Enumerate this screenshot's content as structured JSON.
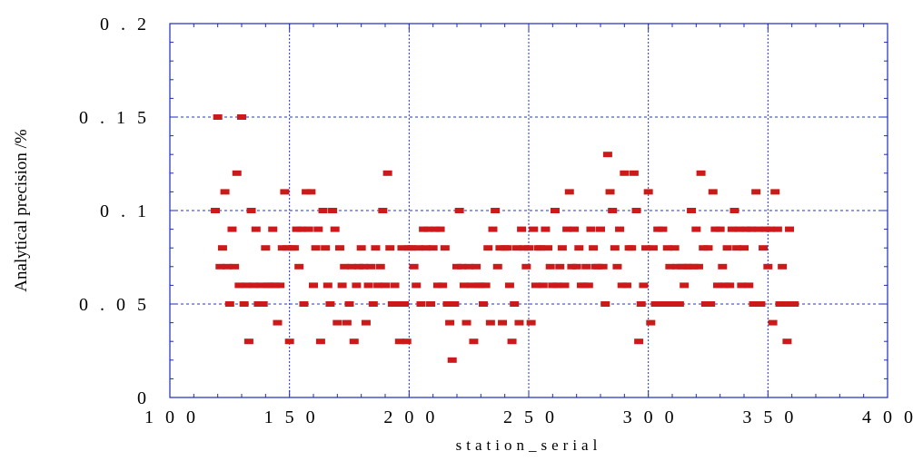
{
  "chart_data": {
    "type": "scatter",
    "title": "",
    "xlabel": "station_serial",
    "ylabel": "Analytical precision /%",
    "xlim": [
      100,
      400
    ],
    "ylim": [
      0,
      0.2
    ],
    "x_ticks": [
      "1 0 0",
      "1 5 0",
      "2 0 0",
      "2 5 0",
      "3 0 0",
      "3 5 0",
      "4 0 0"
    ],
    "y_ticks": [
      "0",
      "0 . 0 5",
      "0 . 1",
      "0 . 1 5",
      "0 . 2"
    ],
    "grid": true,
    "marker_color": "#cc1a1a",
    "grid_color": "#2233cc",
    "series": [
      {
        "points": [
          [
            119,
            0.1
          ],
          [
            120,
            0.15
          ],
          [
            121,
            0.07
          ],
          [
            122,
            0.08
          ],
          [
            123,
            0.11
          ],
          [
            124,
            0.07
          ],
          [
            125,
            0.05
          ],
          [
            126,
            0.09
          ],
          [
            127,
            0.07
          ],
          [
            128,
            0.12
          ],
          [
            129,
            0.06
          ],
          [
            130,
            0.15
          ],
          [
            131,
            0.05
          ],
          [
            132,
            0.06
          ],
          [
            133,
            0.03
          ],
          [
            134,
            0.1
          ],
          [
            135,
            0.06
          ],
          [
            136,
            0.09
          ],
          [
            137,
            0.05
          ],
          [
            138,
            0.06
          ],
          [
            139,
            0.05
          ],
          [
            140,
            0.08
          ],
          [
            141,
            0.06
          ],
          [
            142,
            0.06
          ],
          [
            143,
            0.09
          ],
          [
            144,
            0.06
          ],
          [
            145,
            0.04
          ],
          [
            146,
            0.06
          ],
          [
            147,
            0.08
          ],
          [
            148,
            0.11
          ],
          [
            149,
            0.08
          ],
          [
            150,
            0.03
          ],
          [
            151,
            0.08
          ],
          [
            152,
            0.08
          ],
          [
            153,
            0.09
          ],
          [
            154,
            0.07
          ],
          [
            155,
            0.09
          ],
          [
            156,
            0.05
          ],
          [
            157,
            0.11
          ],
          [
            158,
            0.09
          ],
          [
            159,
            0.11
          ],
          [
            160,
            0.06
          ],
          [
            161,
            0.08
          ],
          [
            162,
            0.09
          ],
          [
            163,
            0.03
          ],
          [
            164,
            0.1
          ],
          [
            165,
            0.08
          ],
          [
            166,
            0.06
          ],
          [
            167,
            0.05
          ],
          [
            168,
            0.1
          ],
          [
            169,
            0.09
          ],
          [
            170,
            0.04
          ],
          [
            171,
            0.08
          ],
          [
            172,
            0.06
          ],
          [
            173,
            0.07
          ],
          [
            174,
            0.04
          ],
          [
            175,
            0.05
          ],
          [
            176,
            0.07
          ],
          [
            177,
            0.03
          ],
          [
            178,
            0.06
          ],
          [
            179,
            0.07
          ],
          [
            180,
            0.08
          ],
          [
            181,
            0.07
          ],
          [
            182,
            0.04
          ],
          [
            183,
            0.06
          ],
          [
            184,
            0.07
          ],
          [
            185,
            0.05
          ],
          [
            186,
            0.08
          ],
          [
            187,
            0.06
          ],
          [
            188,
            0.07
          ],
          [
            189,
            0.1
          ],
          [
            190,
            0.06
          ],
          [
            191,
            0.12
          ],
          [
            192,
            0.08
          ],
          [
            193,
            0.05
          ],
          [
            194,
            0.06
          ],
          [
            195,
            0.05
          ],
          [
            196,
            0.03
          ],
          [
            197,
            0.08
          ],
          [
            198,
            0.05
          ],
          [
            199,
            0.03
          ],
          [
            200,
            0.08
          ],
          [
            201,
            0.08
          ],
          [
            202,
            0.07
          ],
          [
            203,
            0.06
          ],
          [
            204,
            0.08
          ],
          [
            205,
            0.05
          ],
          [
            206,
            0.09
          ],
          [
            207,
            0.08
          ],
          [
            208,
            0.09
          ],
          [
            209,
            0.05
          ],
          [
            210,
            0.08
          ],
          [
            211,
            0.09
          ],
          [
            212,
            0.06
          ],
          [
            213,
            0.09
          ],
          [
            214,
            0.06
          ],
          [
            215,
            0.08
          ],
          [
            216,
            0.05
          ],
          [
            217,
            0.04
          ],
          [
            218,
            0.02
          ],
          [
            219,
            0.05
          ],
          [
            220,
            0.07
          ],
          [
            221,
            0.1
          ],
          [
            222,
            0.07
          ],
          [
            223,
            0.06
          ],
          [
            224,
            0.04
          ],
          [
            225,
            0.07
          ],
          [
            226,
            0.06
          ],
          [
            227,
            0.03
          ],
          [
            228,
            0.07
          ],
          [
            229,
            0.06
          ],
          [
            230,
            0.06
          ],
          [
            231,
            0.05
          ],
          [
            232,
            0.06
          ],
          [
            233,
            0.08
          ],
          [
            234,
            0.04
          ],
          [
            235,
            0.09
          ],
          [
            236,
            0.1
          ],
          [
            237,
            0.07
          ],
          [
            238,
            0.08
          ],
          [
            239,
            0.04
          ],
          [
            240,
            0.08
          ],
          [
            241,
            0.08
          ],
          [
            242,
            0.06
          ],
          [
            243,
            0.03
          ],
          [
            244,
            0.05
          ],
          [
            245,
            0.08
          ],
          [
            246,
            0.04
          ],
          [
            247,
            0.09
          ],
          [
            248,
            0.08
          ],
          [
            249,
            0.07
          ],
          [
            250,
            0.08
          ],
          [
            251,
            0.04
          ],
          [
            252,
            0.09
          ],
          [
            253,
            0.06
          ],
          [
            254,
            0.08
          ],
          [
            255,
            0.08
          ],
          [
            256,
            0.06
          ],
          [
            257,
            0.09
          ],
          [
            258,
            0.08
          ],
          [
            259,
            0.07
          ],
          [
            260,
            0.06
          ],
          [
            261,
            0.1
          ],
          [
            262,
            0.06
          ],
          [
            263,
            0.07
          ],
          [
            264,
            0.08
          ],
          [
            265,
            0.06
          ],
          [
            266,
            0.09
          ],
          [
            267,
            0.11
          ],
          [
            268,
            0.07
          ],
          [
            269,
            0.09
          ],
          [
            270,
            0.07
          ],
          [
            271,
            0.08
          ],
          [
            272,
            0.06
          ],
          [
            273,
            0.06
          ],
          [
            274,
            0.07
          ],
          [
            275,
            0.06
          ],
          [
            276,
            0.09
          ],
          [
            277,
            0.08
          ],
          [
            278,
            0.07
          ],
          [
            279,
            0.07
          ],
          [
            280,
            0.09
          ],
          [
            281,
            0.07
          ],
          [
            282,
            0.05
          ],
          [
            283,
            0.13
          ],
          [
            284,
            0.11
          ],
          [
            285,
            0.1
          ],
          [
            286,
            0.08
          ],
          [
            287,
            0.07
          ],
          [
            288,
            0.09
          ],
          [
            289,
            0.06
          ],
          [
            290,
            0.12
          ],
          [
            291,
            0.06
          ],
          [
            292,
            0.08
          ],
          [
            293,
            0.08
          ],
          [
            294,
            0.12
          ],
          [
            295,
            0.1
          ],
          [
            296,
            0.03
          ],
          [
            297,
            0.05
          ],
          [
            298,
            0.06
          ],
          [
            299,
            0.08
          ],
          [
            300,
            0.11
          ],
          [
            301,
            0.04
          ],
          [
            302,
            0.08
          ],
          [
            303,
            0.05
          ],
          [
            304,
            0.09
          ],
          [
            305,
            0.05
          ],
          [
            306,
            0.09
          ],
          [
            307,
            0.05
          ],
          [
            308,
            0.08
          ],
          [
            309,
            0.07
          ],
          [
            310,
            0.05
          ],
          [
            311,
            0.08
          ],
          [
            312,
            0.07
          ],
          [
            313,
            0.05
          ],
          [
            314,
            0.07
          ],
          [
            315,
            0.06
          ],
          [
            316,
            0.07
          ],
          [
            317,
            0.07
          ],
          [
            318,
            0.1
          ],
          [
            319,
            0.07
          ],
          [
            320,
            0.09
          ],
          [
            321,
            0.07
          ],
          [
            322,
            0.12
          ],
          [
            323,
            0.08
          ],
          [
            324,
            0.05
          ],
          [
            325,
            0.08
          ],
          [
            326,
            0.05
          ],
          [
            327,
            0.11
          ],
          [
            328,
            0.09
          ],
          [
            329,
            0.06
          ],
          [
            330,
            0.09
          ],
          [
            331,
            0.07
          ],
          [
            332,
            0.06
          ],
          [
            333,
            0.08
          ],
          [
            334,
            0.06
          ],
          [
            335,
            0.09
          ],
          [
            336,
            0.1
          ],
          [
            337,
            0.08
          ],
          [
            338,
            0.09
          ],
          [
            339,
            0.06
          ],
          [
            340,
            0.08
          ],
          [
            341,
            0.09
          ],
          [
            342,
            0.06
          ],
          [
            343,
            0.09
          ],
          [
            344,
            0.05
          ],
          [
            345,
            0.11
          ],
          [
            346,
            0.09
          ],
          [
            347,
            0.05
          ],
          [
            348,
            0.08
          ],
          [
            349,
            0.09
          ],
          [
            350,
            0.07
          ],
          [
            351,
            0.09
          ],
          [
            352,
            0.04
          ],
          [
            353,
            0.11
          ],
          [
            354,
            0.09
          ],
          [
            355,
            0.05
          ],
          [
            356,
            0.07
          ],
          [
            357,
            0.05
          ],
          [
            358,
            0.03
          ],
          [
            359,
            0.09
          ],
          [
            360,
            0.05
          ],
          [
            361,
            0.05
          ]
        ]
      }
    ]
  }
}
